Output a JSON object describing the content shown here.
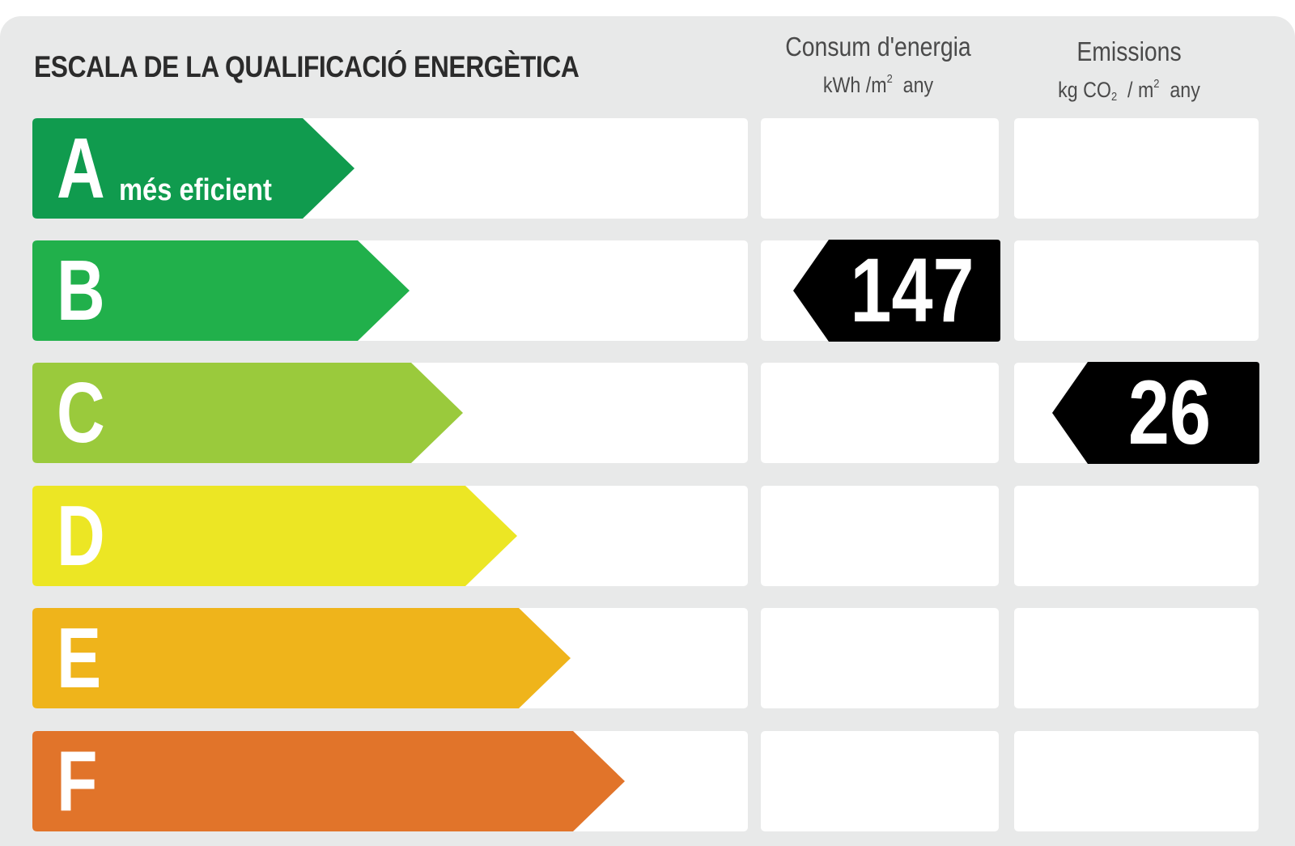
{
  "title": "ESCALA DE LA QUALIFICACIÓ ENERGÈTICA",
  "columns": {
    "energy": {
      "name": "Consum d'energia",
      "unit_prefix": "kWh /m",
      "unit_exp": "2",
      "unit_suffix": "any"
    },
    "emissions": {
      "name": "Emissions",
      "unit_prefix": "kg CO",
      "unit_sub": "2",
      "unit_mid": "/ m",
      "unit_exp": "2",
      "unit_suffix": "any"
    }
  },
  "ratings": [
    {
      "letter": "A",
      "label": "més eficient",
      "color": "#109b4e"
    },
    {
      "letter": "B",
      "label": "",
      "color": "#21b04b"
    },
    {
      "letter": "C",
      "label": "",
      "color": "#9aca3c"
    },
    {
      "letter": "D",
      "label": "",
      "color": "#ece624"
    },
    {
      "letter": "E",
      "label": "",
      "color": "#efb41b"
    },
    {
      "letter": "F",
      "label": "",
      "color": "#e1742a"
    }
  ],
  "energy_rating": {
    "value": "147",
    "rating": "B",
    "color": "#000000"
  },
  "emissions_rating": {
    "value": "26",
    "rating": "C",
    "color": "#000000"
  }
}
